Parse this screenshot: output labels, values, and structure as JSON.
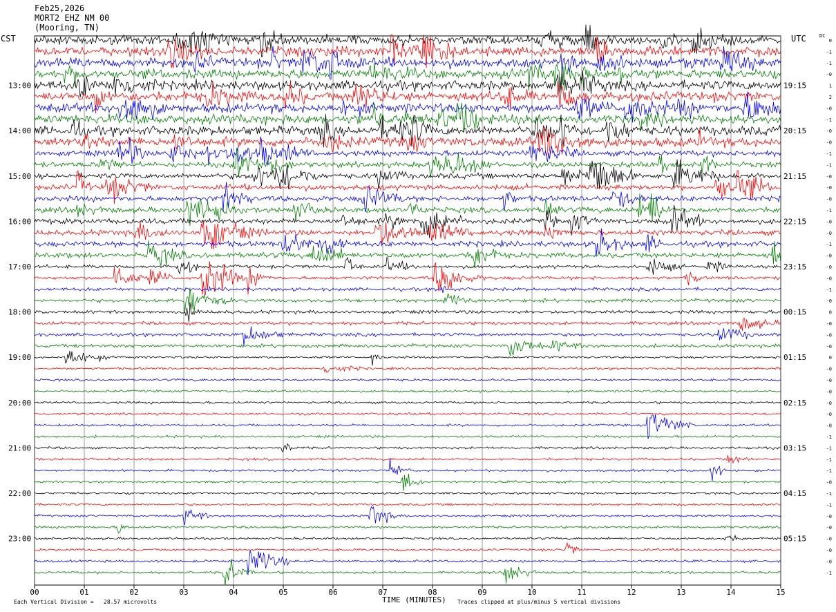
{
  "header": {
    "date": "Feb25,2026",
    "station": "MORT2 EHZ NM 00",
    "location": "(Mooring, TN)"
  },
  "left_zone": "CST",
  "right_zone": "UTC",
  "dc_label": "DC",
  "footer": {
    "scale_text": "Each Vertical Division =   28.57 microvolts",
    "xlabel": "TIME (MINUTES)",
    "clip_text": "Traces clipped at plus/minus 5 vertical divisions"
  },
  "chart_data": {
    "type": "helicorder",
    "title": "MORT2 EHZ NM 00",
    "xlabel": "TIME (MINUTES)",
    "xlim": [
      0,
      15
    ],
    "x_ticks": [
      "00",
      "01",
      "02",
      "03",
      "04",
      "05",
      "06",
      "07",
      "08",
      "09",
      "10",
      "11",
      "12",
      "13",
      "14",
      "15"
    ],
    "left_labels": [
      "13:00",
      "14:00",
      "15:00",
      "16:00",
      "17:00",
      "18:00",
      "19:00",
      "20:00",
      "21:00",
      "22:00",
      "23:00"
    ],
    "right_labels": [
      "19:15",
      "20:15",
      "21:15",
      "22:15",
      "23:15",
      "00:15",
      "01:15",
      "02:15",
      "03:15",
      "04:15",
      "05:15"
    ],
    "trace_colors": [
      "#000000",
      "#ff0000",
      "#0000ff",
      "#008000"
    ],
    "trace_count": 48,
    "dc_offsets": [
      "0",
      "-1",
      "-1",
      "-0",
      "1",
      "2",
      "-0",
      "-1",
      "-0",
      "-0",
      "-1",
      "-1",
      "-0",
      "-0",
      "-0",
      "-1",
      "-0",
      "-0",
      "-1",
      "-0",
      "-0",
      "-0",
      "-1",
      "-0",
      "0",
      "-0",
      "-0",
      "-0",
      "0",
      "-0",
      "-0",
      "-0",
      "-0",
      "-0",
      "-0",
      "-1",
      "-1",
      "-1",
      "-1",
      "-0",
      "-1",
      "-1",
      "-0",
      "-0",
      "-0",
      "-0",
      "-0",
      "-1"
    ],
    "grid": true
  }
}
